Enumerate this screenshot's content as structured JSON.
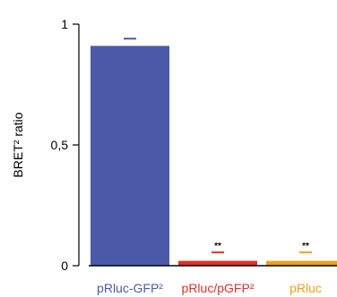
{
  "chart_data": {
    "type": "bar",
    "title": "",
    "xlabel": "",
    "ylabel": "BRET² ratio",
    "ylim": [
      0,
      1
    ],
    "yticks": [
      {
        "value": 0,
        "label": "0"
      },
      {
        "value": 0.5,
        "label": "0,5"
      },
      {
        "value": 1,
        "label": "1"
      }
    ],
    "categories": [
      "pRluc-GFP²",
      "pRluc/pGFP²",
      "pRluc"
    ],
    "values": [
      0.91,
      0.02,
      0.02
    ],
    "errors": [
      0.03,
      0.035,
      0.035
    ],
    "significance": [
      "",
      "**",
      "**"
    ],
    "colors": [
      "#4a5aa8",
      "#e0302a",
      "#f0a020"
    ],
    "grid": false,
    "legend": "none"
  }
}
